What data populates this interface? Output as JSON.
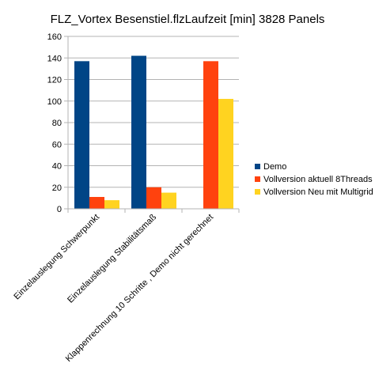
{
  "chart_data": {
    "type": "bar",
    "title": "FLZ_Vortex Besenstiel.flzLaufzeit [min] 3828 Panels",
    "xlabel": "",
    "ylabel": "",
    "categories": [
      "Einzelauslegung Schwerpunkt",
      "Einzelauslegung Stabilitätsmaß",
      "Klappenrechnung 10 Schritte , Demo nicht gerechnet"
    ],
    "series": [
      {
        "name": "Demo",
        "color": "#004586",
        "values": [
          137,
          142,
          null
        ]
      },
      {
        "name": "Vollversion aktuell 8Threads",
        "color": "#ff420e",
        "values": [
          11,
          20,
          137
        ]
      },
      {
        "name": "Vollversion Neu mit Multigrid",
        "color": "#ffd320",
        "values": [
          8,
          15,
          102
        ]
      }
    ],
    "ylim": [
      0,
      160
    ],
    "yticks": [
      0,
      20,
      40,
      60,
      80,
      100,
      120,
      140,
      160
    ],
    "grid": true,
    "legend_position": "right"
  }
}
